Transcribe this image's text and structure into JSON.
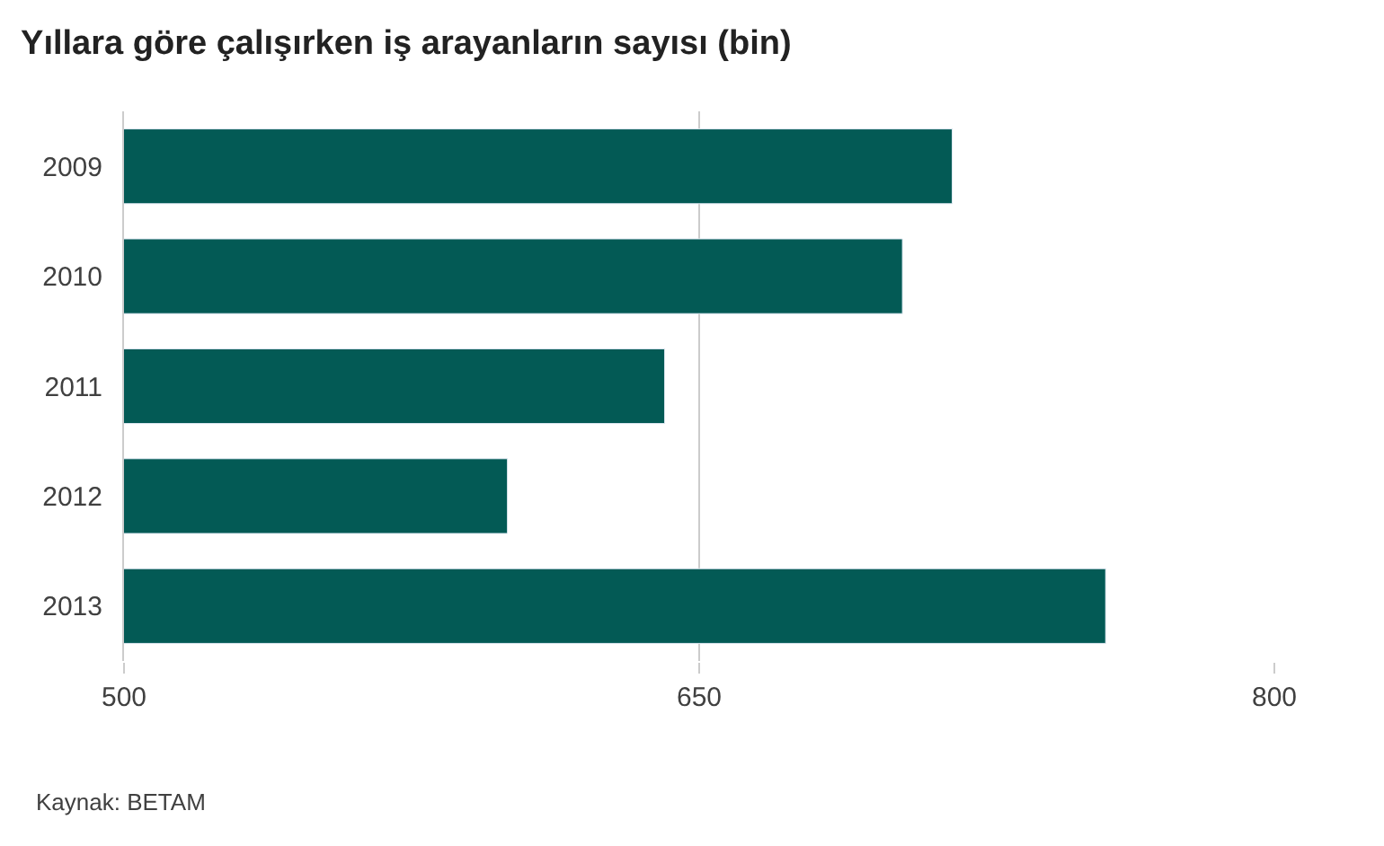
{
  "chart_data": {
    "type": "bar",
    "orientation": "horizontal",
    "title": "Yıllara göre çalışırken iş arayanların sayısı (bin)",
    "categories": [
      "2009",
      "2010",
      "2011",
      "2012",
      "2013"
    ],
    "values": [
      716,
      703,
      641,
      600,
      756
    ],
    "color": "#035a55",
    "xlim": [
      500,
      800
    ],
    "xticks": [
      500,
      650,
      800
    ],
    "grid": "x",
    "annotations": [
      "Kaynak: BETAM"
    ]
  }
}
